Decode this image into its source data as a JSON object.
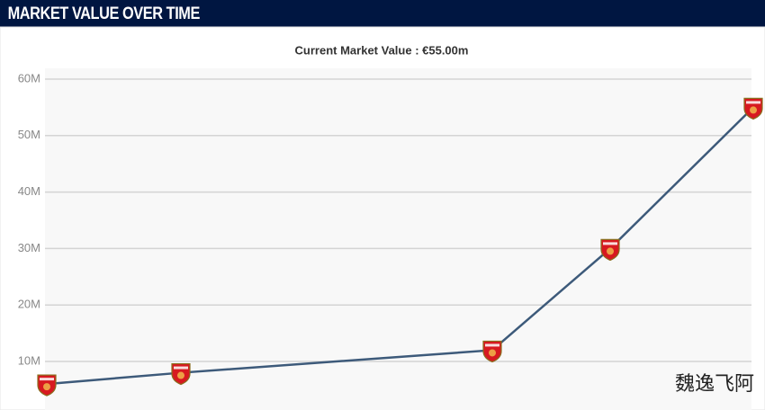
{
  "header": {
    "title": "MARKET VALUE OVER TIME"
  },
  "chart_data": {
    "type": "line",
    "title": "Current Market Value : €55.00m",
    "categories": [
      null,
      null,
      null,
      null,
      null
    ],
    "series": [
      {
        "name": null,
        "color": "#3d5a7a",
        "values": [
          6,
          8,
          12,
          30,
          55
        ]
      }
    ],
    "ylim": [
      0,
      60
    ],
    "yticks": [
      {
        "value": 10,
        "label": "10M"
      },
      {
        "value": 20,
        "label": "20M"
      },
      {
        "value": 30,
        "label": "30M"
      },
      {
        "value": 40,
        "label": "40M"
      },
      {
        "value": 50,
        "label": "50M"
      },
      {
        "value": 60,
        "label": "60M"
      }
    ],
    "grid": true
  },
  "watermark": "魏逸飞阿"
}
